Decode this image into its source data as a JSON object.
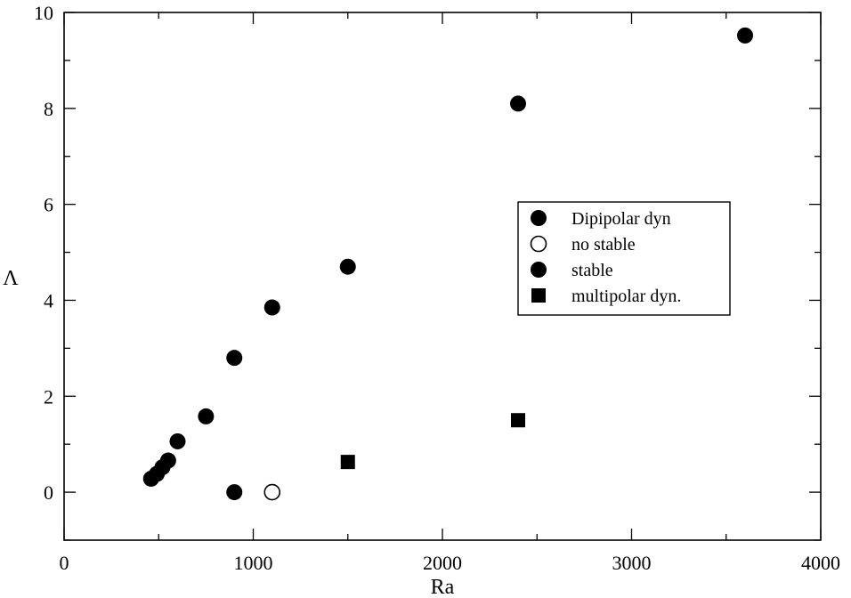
{
  "chart_data": {
    "type": "scatter",
    "xlabel": "Ra",
    "ylabel": "Λ",
    "xlim": [
      0,
      4000
    ],
    "ylim": [
      -1,
      10
    ],
    "x_ticks": [
      0,
      1000,
      2000,
      3000,
      4000
    ],
    "y_ticks": [
      0,
      2,
      4,
      6,
      8,
      10
    ],
    "x_tick_labels": [
      "0",
      "1000",
      "2000",
      "3000",
      "4000"
    ],
    "y_tick_labels": [
      "0",
      "2",
      "4",
      "6",
      "8",
      "10"
    ],
    "grid": false,
    "legend_position": "right",
    "series": [
      {
        "name": "Dipipolar dyn",
        "marker": "filled-circle",
        "color": "#000000",
        "points": [
          {
            "x": 460,
            "y": 0.28
          },
          {
            "x": 490,
            "y": 0.38
          },
          {
            "x": 520,
            "y": 0.52
          },
          {
            "x": 550,
            "y": 0.66
          },
          {
            "x": 600,
            "y": 1.06
          },
          {
            "x": 750,
            "y": 1.58
          },
          {
            "x": 900,
            "y": 2.8
          },
          {
            "x": 1100,
            "y": 3.85
          },
          {
            "x": 1500,
            "y": 4.7
          },
          {
            "x": 2400,
            "y": 8.1
          },
          {
            "x": 3600,
            "y": 9.52
          }
        ]
      },
      {
        "name": "no stable",
        "marker": "open-circle",
        "color": "#000000",
        "points": [
          {
            "x": 1100,
            "y": 0
          }
        ]
      },
      {
        "name": "stable",
        "marker": "filled-circle",
        "color": "#000000",
        "points": [
          {
            "x": 900,
            "y": 0
          }
        ]
      },
      {
        "name": "multipolar dyn.",
        "marker": "filled-square",
        "color": "#000000",
        "points": [
          {
            "x": 1500,
            "y": 0.63
          },
          {
            "x": 2400,
            "y": 1.5
          }
        ]
      }
    ]
  }
}
